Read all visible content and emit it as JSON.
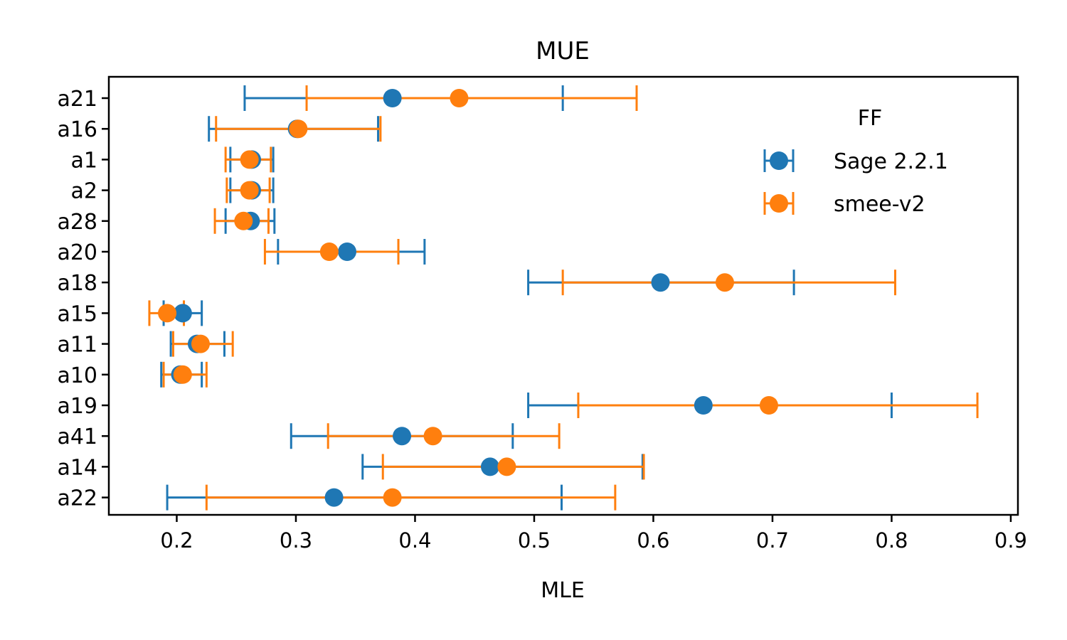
{
  "chart_data": {
    "type": "scatter",
    "title": "MUE",
    "xlabel": "MLE",
    "ylabel": "",
    "xlim": [
      0.143,
      0.906
    ],
    "xticks": [
      0.2,
      0.3,
      0.4,
      0.5,
      0.6,
      0.7,
      0.8,
      0.9
    ],
    "xtick_labels": [
      "0.2",
      "0.3",
      "0.4",
      "0.5",
      "0.6",
      "0.7",
      "0.8",
      "0.9"
    ],
    "categories": [
      "a21",
      "a16",
      "a1",
      "a2",
      "a28",
      "a20",
      "a18",
      "a15",
      "a11",
      "a10",
      "a19",
      "a41",
      "a14",
      "a22"
    ],
    "grid": false,
    "legend": {
      "title": "FF",
      "placement": "upper-right"
    },
    "series": [
      {
        "name": "Sage 2.2.1",
        "color": "#1f77b4",
        "values": [
          0.381,
          0.301,
          0.263,
          0.263,
          0.262,
          0.343,
          0.606,
          0.205,
          0.217,
          0.203,
          0.642,
          0.389,
          0.463,
          0.332
        ],
        "lower": [
          0.257,
          0.227,
          0.245,
          0.245,
          0.241,
          0.285,
          0.495,
          0.189,
          0.195,
          0.187,
          0.495,
          0.296,
          0.356,
          0.192
        ],
        "upper": [
          0.524,
          0.369,
          0.281,
          0.281,
          0.282,
          0.408,
          0.718,
          0.221,
          0.24,
          0.221,
          0.8,
          0.482,
          0.591,
          0.523
        ]
      },
      {
        "name": "smee-v2",
        "color": "#ff7f0e",
        "values": [
          0.437,
          0.302,
          0.261,
          0.261,
          0.256,
          0.328,
          0.66,
          0.192,
          0.22,
          0.205,
          0.697,
          0.415,
          0.477,
          0.381
        ],
        "lower": [
          0.309,
          0.233,
          0.241,
          0.242,
          0.232,
          0.274,
          0.524,
          0.177,
          0.197,
          0.189,
          0.537,
          0.327,
          0.373,
          0.225
        ],
        "upper": [
          0.586,
          0.371,
          0.279,
          0.278,
          0.277,
          0.386,
          0.803,
          0.206,
          0.247,
          0.225,
          0.872,
          0.521,
          0.592,
          0.568
        ]
      }
    ]
  }
}
